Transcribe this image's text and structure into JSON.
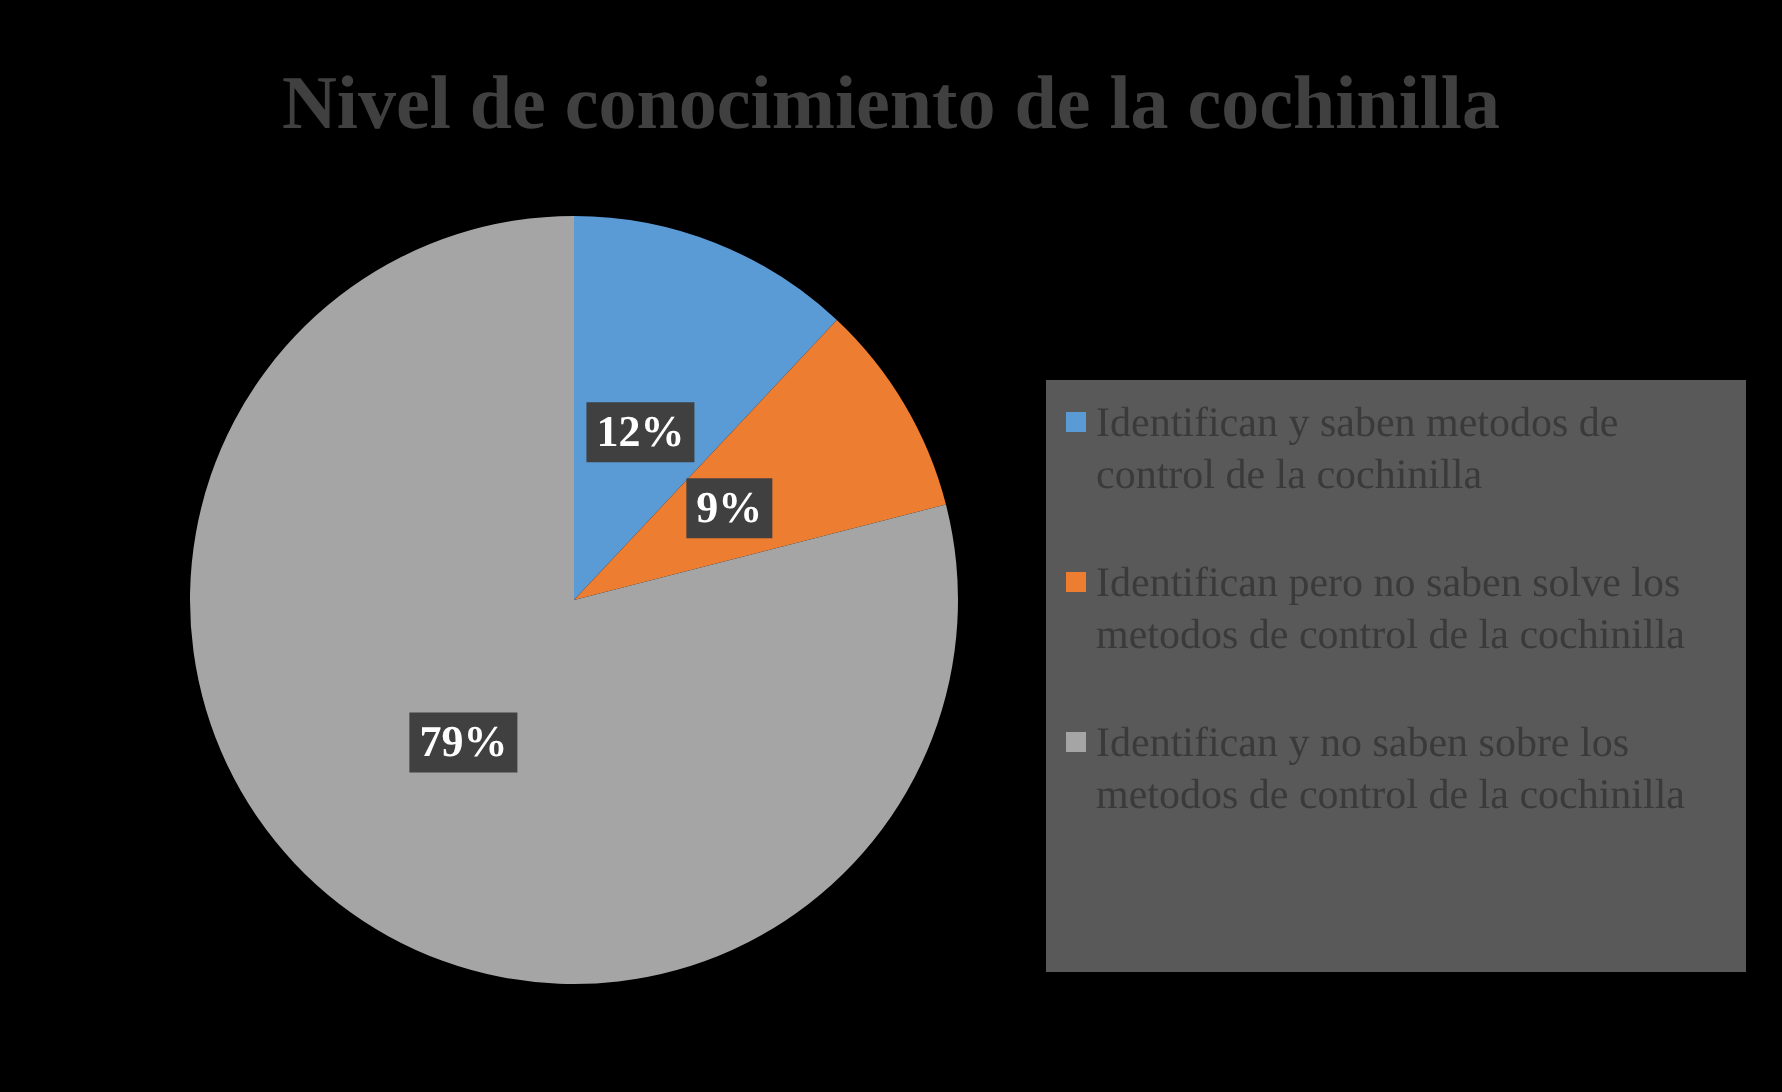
{
  "chart_data": {
    "type": "pie",
    "title": "Nivel de conocimiento de la cochinilla",
    "categories": [
      "Identifican y saben metodos de control de la cochinilla",
      "Identifican pero no saben solve los metodos de control de la cochinilla",
      "Identifican y no saben sobre los metodos de control de la cochinilla"
    ],
    "values": [
      12,
      9,
      79
    ],
    "colors": [
      "#5b9bd5",
      "#ed7d31",
      "#a5a5a5"
    ],
    "value_labels": [
      "12%",
      "9%",
      "79%"
    ],
    "legend": "right"
  }
}
